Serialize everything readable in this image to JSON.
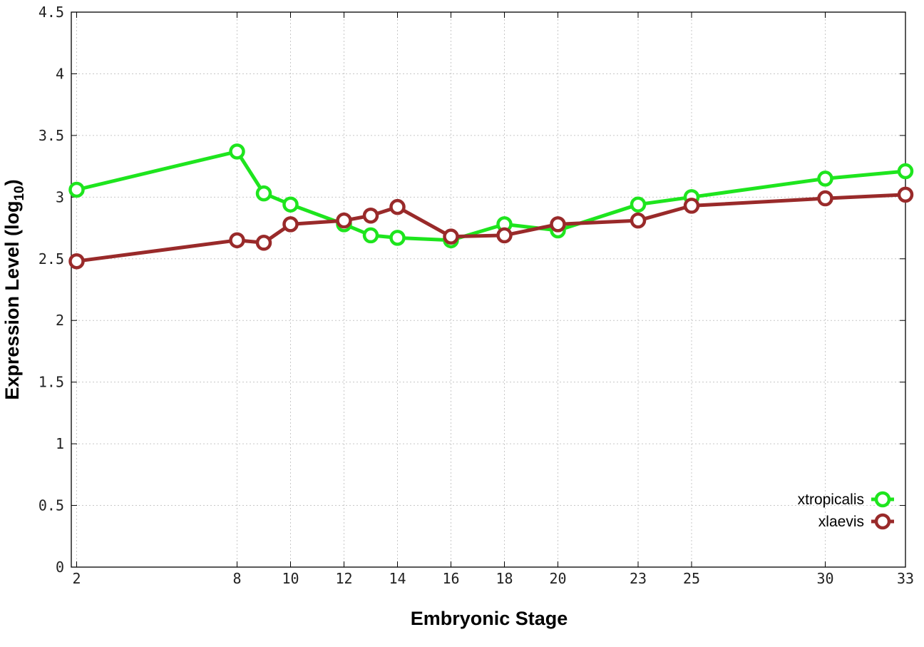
{
  "chart_data": {
    "type": "line",
    "xlabel": "Embryonic Stage",
    "ylabel_main": "Expression Level (log",
    "ylabel_sub": "10",
    "ylabel_close": ")",
    "xlim": [
      1.8,
      33
    ],
    "ylim": [
      0,
      4.5
    ],
    "x_ticks": [
      2,
      8,
      10,
      12,
      14,
      16,
      18,
      20,
      23,
      25,
      30,
      33
    ],
    "x_tick_labels": [
      "2",
      "8",
      "10",
      "12",
      "14",
      "16",
      "18",
      "20",
      "23",
      "25",
      "30",
      "33"
    ],
    "y_ticks": [
      0,
      0.5,
      1,
      1.5,
      2,
      2.5,
      3,
      3.5,
      4,
      4.5
    ],
    "y_tick_labels": [
      "0",
      "0.5",
      "1",
      "1.5",
      "2",
      "2.5",
      "3",
      "3.5",
      "4",
      "4.5"
    ],
    "grid": true,
    "legend_position": "bottom-right",
    "x": [
      2,
      8,
      9,
      10,
      12,
      13,
      14,
      16,
      18,
      20,
      23,
      25,
      30,
      33
    ],
    "series": [
      {
        "name": "xtropicalis",
        "color": "#1ee51e",
        "values": [
          3.06,
          3.37,
          3.03,
          2.94,
          2.78,
          2.69,
          2.67,
          2.65,
          2.78,
          2.73,
          2.94,
          3.0,
          3.15,
          3.21
        ]
      },
      {
        "name": "xlaevis",
        "color": "#992a2a",
        "values": [
          2.48,
          2.65,
          2.63,
          2.78,
          2.81,
          2.85,
          2.92,
          2.68,
          2.69,
          2.78,
          2.81,
          2.93,
          2.99,
          3.02
        ]
      }
    ]
  }
}
